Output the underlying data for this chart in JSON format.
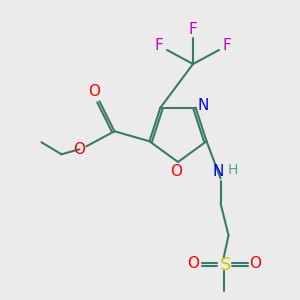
{
  "bg_color": "#ebebeb",
  "bond_color": "#3a7a6a",
  "colors": {
    "O": "#ff0000",
    "N": "#0000ff",
    "F": "#cc00cc",
    "S": "#cccc00",
    "C": "#3a7a6a",
    "H": "#5a9a8a"
  },
  "figsize": [
    3.0,
    3.0
  ],
  "dpi": 100
}
